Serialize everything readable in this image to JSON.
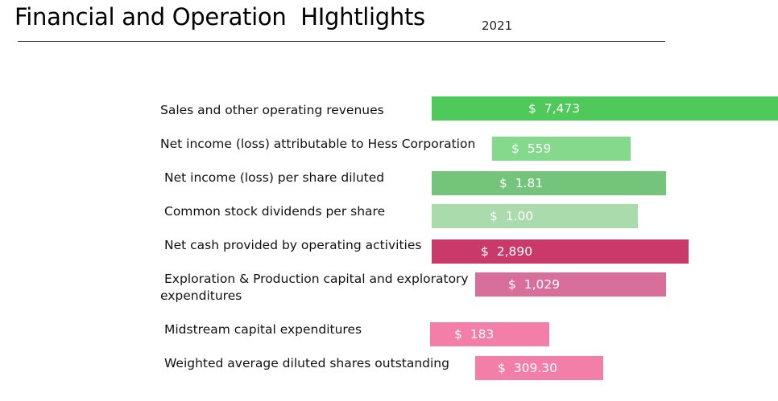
{
  "header": {
    "title": "Financial and Operation  HIghtlights",
    "year": "2021"
  },
  "chart_data": {
    "type": "bar",
    "categories": [
      "Sales and other operating revenues",
      "Net income (loss) attributable to Hess Corporation",
      "Net income (loss) per share diluted",
      "Common stock dividends per share",
      "Net cash provided by operating activities",
      "Exploration & Production capital and exploratory expenditures",
      "Midstream capital expenditures",
      "Weighted average diluted shares outstanding"
    ],
    "values": [
      7473,
      559,
      1.81,
      1.0,
      2890,
      1029,
      183,
      309.3
    ],
    "value_labels": [
      "$  7,473",
      "$  559",
      "$  1.81",
      "$  1.00",
      "$  2,890",
      "$  1,029",
      "$  183",
      "$  309.30"
    ],
    "colors": [
      "#4ec95a",
      "#85d98c",
      "#74c47c",
      "#a9dbac",
      "#c93a6b",
      "#d86f9b",
      "#f37fa8",
      "#f37fa8"
    ],
    "title": "Financial and Operation  HIghtlights"
  }
}
